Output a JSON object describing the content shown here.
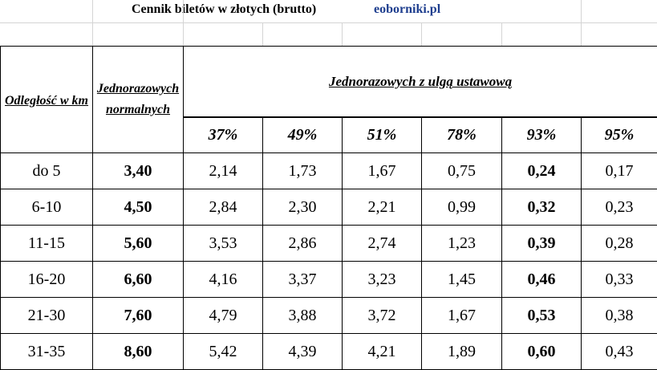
{
  "header": {
    "title": "Cennik biletów w złotych (brutto)",
    "site": "eoborniki.pl"
  },
  "table": {
    "col_distance": "Odległość w km",
    "col_normal_line1": "Jednorazowych",
    "col_normal_line2": "normalnych",
    "col_group": "Jednorazowych z ulgą ustawową",
    "discounts": [
      "37%",
      "49%",
      "51%",
      "78%",
      "93%",
      "95%"
    ],
    "rows": [
      {
        "distance": "do 5",
        "normal": "3,40",
        "values": [
          "2,14",
          "1,73",
          "1,67",
          "0,75",
          "0,24",
          "0,17"
        ]
      },
      {
        "distance": "6-10",
        "normal": "4,50",
        "values": [
          "2,84",
          "2,30",
          "2,21",
          "0,99",
          "0,32",
          "0,23"
        ]
      },
      {
        "distance": "11-15",
        "normal": "5,60",
        "values": [
          "3,53",
          "2,86",
          "2,74",
          "1,23",
          "0,39",
          "0,28"
        ]
      },
      {
        "distance": "16-20",
        "normal": "6,60",
        "values": [
          "4,16",
          "3,37",
          "3,23",
          "1,45",
          "0,46",
          "0,33"
        ]
      },
      {
        "distance": "21-30",
        "normal": "7,60",
        "values": [
          "4,79",
          "3,88",
          "3,72",
          "1,67",
          "0,53",
          "0,38"
        ]
      },
      {
        "distance": "31-35",
        "normal": "8,60",
        "values": [
          "5,42",
          "4,39",
          "4,21",
          "1,89",
          "0,60",
          "0,43"
        ]
      }
    ]
  }
}
